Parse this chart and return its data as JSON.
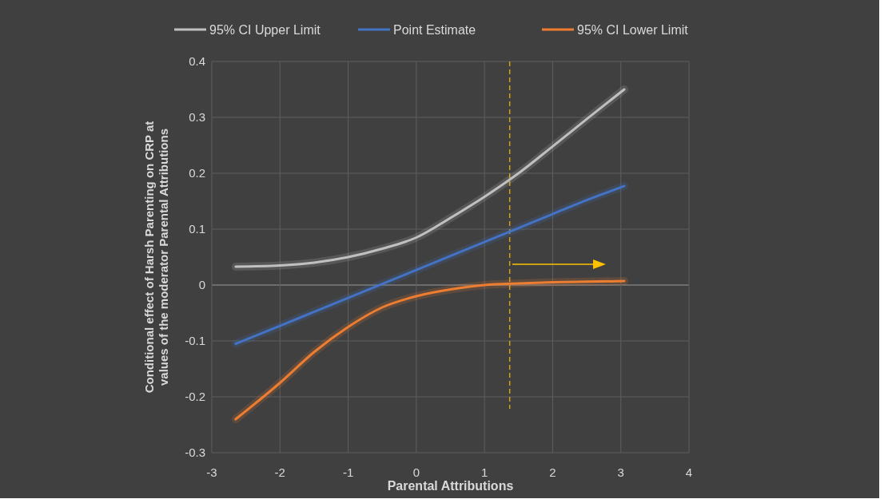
{
  "chart_data": {
    "type": "line",
    "xlabel": "Parental Attributions",
    "ylabel": "Conditional effect of Harsh Parenting on CRP at values of the moderator Parental Attributions",
    "xlim": [
      -3,
      4
    ],
    "xticks": [
      -3,
      -2,
      -1,
      0,
      1,
      2,
      3,
      4
    ],
    "ylim": [
      -0.3,
      0.4
    ],
    "yticks": [
      -0.3,
      -0.2,
      -0.1,
      0,
      0.1,
      0.2,
      0.3,
      0.4
    ],
    "grid": true,
    "legend": "top",
    "line_style": "solid",
    "marker": "none",
    "x": [
      -2.65,
      -2,
      -1.5,
      -1,
      -0.5,
      0,
      0.5,
      1,
      1.5,
      2,
      2.5,
      3.05
    ],
    "series": [
      {
        "name": "95% CI Upper Limit",
        "color": "#c0c0c0",
        "values": [
          0.033,
          0.035,
          0.04,
          0.05,
          0.065,
          0.085,
          0.12,
          0.158,
          0.2,
          0.248,
          0.297,
          0.35
        ]
      },
      {
        "name": "Point Estimate",
        "color": "#4472c4",
        "values": [
          -0.105,
          -0.073,
          -0.048,
          -0.023,
          0.002,
          0.027,
          0.052,
          0.077,
          0.102,
          0.127,
          0.152,
          0.177
        ]
      },
      {
        "name": "95% CI Lower Limit",
        "color": "#ed7d31",
        "values": [
          -0.24,
          -0.175,
          -0.12,
          -0.075,
          -0.04,
          -0.02,
          -0.008,
          0,
          0.003,
          0.005,
          0.006,
          0.007
        ]
      }
    ],
    "ref_lines": [
      {
        "axis": "x",
        "value": 1.37,
        "color": "#d4a017",
        "line_style": "dashed"
      }
    ]
  }
}
